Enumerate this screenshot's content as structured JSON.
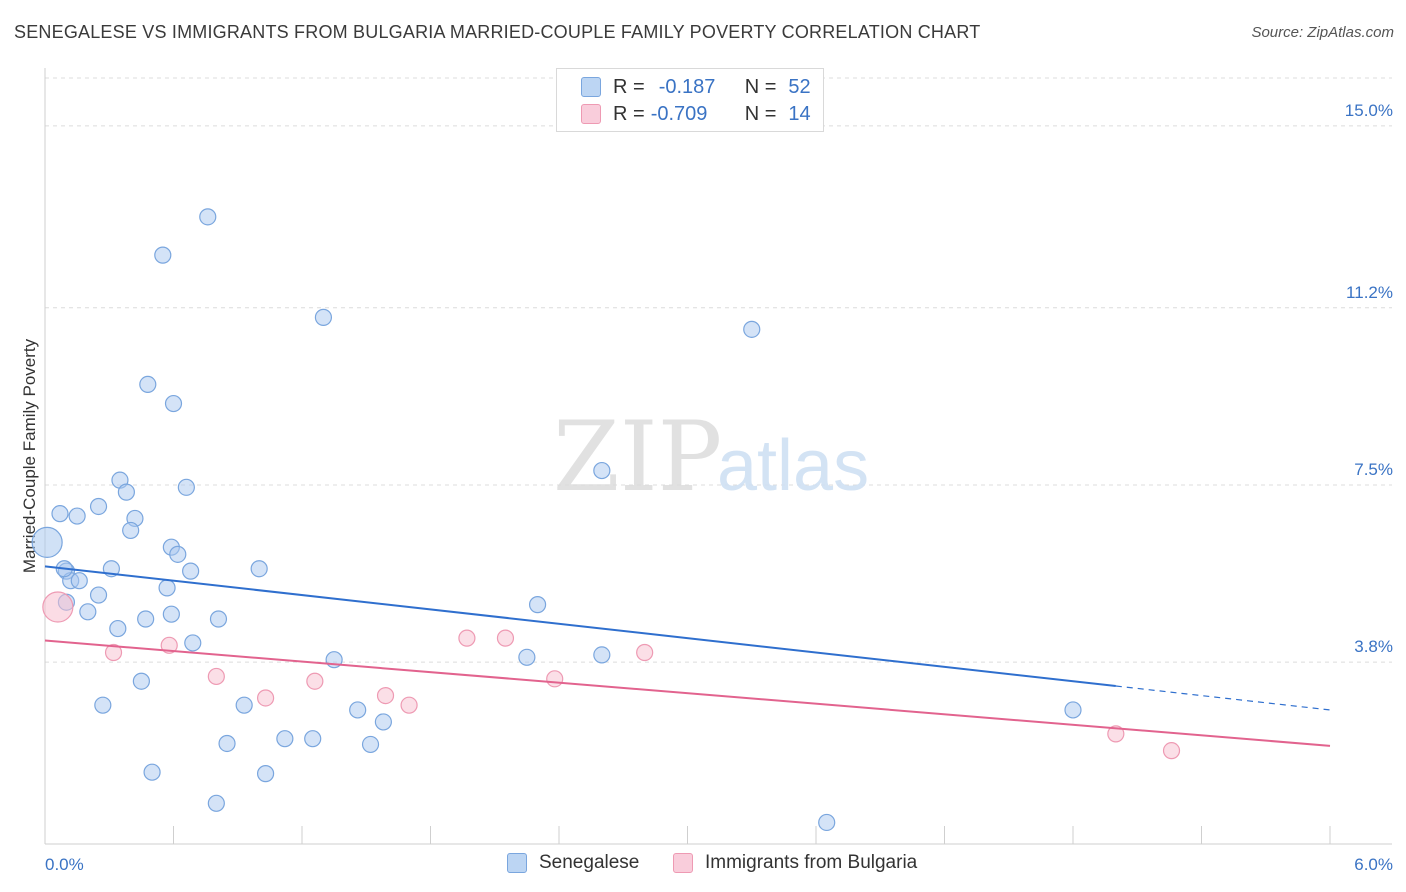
{
  "chart_data": {
    "type": "scatter",
    "title": "SENEGALESE VS IMMIGRANTS FROM BULGARIA MARRIED-COUPLE FAMILY POVERTY CORRELATION CHART",
    "source": "Source: ZipAtlas.com",
    "ylabel": "Married-Couple Family Poverty",
    "xlabel": "",
    "xlim": [
      0.0,
      6.0
    ],
    "ylim": [
      0.0,
      16.0
    ],
    "x_tick_labels": [
      "0.0%",
      "6.0%"
    ],
    "y_ticks": [
      3.8,
      7.5,
      11.2,
      15.0
    ],
    "y_tick_labels": [
      "3.8%",
      "7.5%",
      "11.2%",
      "15.0%"
    ],
    "grid": true,
    "watermark": {
      "zip": "ZIP",
      "atlas": "atlas"
    },
    "legend_stats": [
      {
        "r_label": "R =",
        "r_value": "-0.187",
        "n_label": "N =",
        "n_value": "52"
      },
      {
        "r_label": "R =",
        "r_value": "-0.709",
        "n_label": "N =",
        "n_value": "14"
      }
    ],
    "series": [
      {
        "name": "Senegalese",
        "color": "#a9c8ef",
        "stroke": "#7aa6de",
        "line_color": "#2f6fce",
        "trend": {
          "x0": 0.0,
          "y0": 5.8,
          "x1": 5.0,
          "y1": 3.3,
          "dash_to_x": 6.0,
          "dash_to_y": 2.8
        },
        "points": [
          {
            "x": 0.01,
            "y": 6.3,
            "big": true
          },
          {
            "x": 0.07,
            "y": 6.9
          },
          {
            "x": 0.1,
            "y": 5.7
          },
          {
            "x": 0.12,
            "y": 5.5
          },
          {
            "x": 0.16,
            "y": 5.5
          },
          {
            "x": 0.25,
            "y": 5.2
          },
          {
            "x": 0.1,
            "y": 5.05
          },
          {
            "x": 0.2,
            "y": 4.85
          },
          {
            "x": 0.15,
            "y": 6.85
          },
          {
            "x": 0.25,
            "y": 7.05
          },
          {
            "x": 0.35,
            "y": 7.6
          },
          {
            "x": 0.38,
            "y": 7.35
          },
          {
            "x": 0.42,
            "y": 6.8
          },
          {
            "x": 0.4,
            "y": 6.55
          },
          {
            "x": 0.31,
            "y": 5.75
          },
          {
            "x": 0.66,
            "y": 7.45
          },
          {
            "x": 0.59,
            "y": 6.2
          },
          {
            "x": 0.62,
            "y": 6.05
          },
          {
            "x": 0.68,
            "y": 5.7
          },
          {
            "x": 1.0,
            "y": 5.75
          },
          {
            "x": 0.57,
            "y": 5.35
          },
          {
            "x": 0.48,
            "y": 9.6
          },
          {
            "x": 0.6,
            "y": 9.2
          },
          {
            "x": 0.55,
            "y": 12.3
          },
          {
            "x": 0.76,
            "y": 13.1
          },
          {
            "x": 1.3,
            "y": 11.0
          },
          {
            "x": 3.3,
            "y": 10.75
          },
          {
            "x": 2.6,
            "y": 7.8
          },
          {
            "x": 2.3,
            "y": 5.0
          },
          {
            "x": 0.34,
            "y": 4.5
          },
          {
            "x": 0.47,
            "y": 4.7
          },
          {
            "x": 0.59,
            "y": 4.8
          },
          {
            "x": 0.81,
            "y": 4.7
          },
          {
            "x": 0.69,
            "y": 4.2
          },
          {
            "x": 0.45,
            "y": 3.4
          },
          {
            "x": 1.35,
            "y": 3.85
          },
          {
            "x": 2.25,
            "y": 3.9
          },
          {
            "x": 2.6,
            "y": 3.95
          },
          {
            "x": 0.27,
            "y": 2.9
          },
          {
            "x": 0.93,
            "y": 2.9
          },
          {
            "x": 1.46,
            "y": 2.8
          },
          {
            "x": 1.58,
            "y": 2.55
          },
          {
            "x": 0.85,
            "y": 2.1
          },
          {
            "x": 1.12,
            "y": 2.2
          },
          {
            "x": 1.25,
            "y": 2.2
          },
          {
            "x": 1.52,
            "y": 2.08
          },
          {
            "x": 0.5,
            "y": 1.5
          },
          {
            "x": 1.03,
            "y": 1.47
          },
          {
            "x": 0.8,
            "y": 0.85
          },
          {
            "x": 3.65,
            "y": 0.45
          },
          {
            "x": 4.8,
            "y": 2.8
          },
          {
            "x": 0.09,
            "y": 5.75
          }
        ]
      },
      {
        "name": "Immigrants from Bulgaria",
        "color": "#f7bfd0",
        "stroke": "#ee9ab3",
        "line_color": "#e2638e",
        "trend": {
          "x0": 0.0,
          "y0": 4.25,
          "x1": 6.0,
          "y1": 2.05
        },
        "points": [
          {
            "x": 0.06,
            "y": 4.95,
            "big": true
          },
          {
            "x": 0.32,
            "y": 4.0
          },
          {
            "x": 0.58,
            "y": 4.15
          },
          {
            "x": 0.8,
            "y": 3.5
          },
          {
            "x": 1.03,
            "y": 3.05
          },
          {
            "x": 1.26,
            "y": 3.4
          },
          {
            "x": 1.59,
            "y": 3.1
          },
          {
            "x": 1.7,
            "y": 2.9
          },
          {
            "x": 1.97,
            "y": 4.3
          },
          {
            "x": 2.15,
            "y": 4.3
          },
          {
            "x": 2.38,
            "y": 3.45
          },
          {
            "x": 2.8,
            "y": 4.0
          },
          {
            "x": 5.0,
            "y": 2.3
          },
          {
            "x": 5.26,
            "y": 1.95
          }
        ]
      }
    ]
  }
}
